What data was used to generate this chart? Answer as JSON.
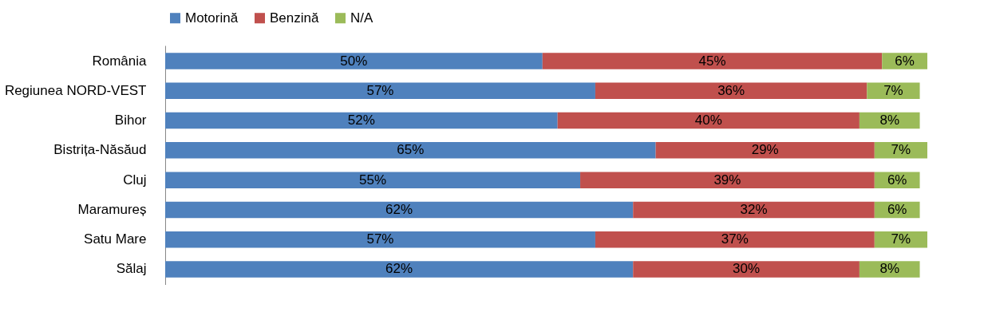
{
  "chart_data": {
    "type": "bar",
    "orientation": "horizontal",
    "stacked": true,
    "legend": "top",
    "categories": [
      "România",
      "Regiunea NORD-VEST",
      "Bihor",
      "Bistrița-Năsăud",
      "Cluj",
      "Maramureș",
      "Satu Mare",
      "Sălaj"
    ],
    "series": [
      {
        "name": "Motorină",
        "color": "#4f81bd",
        "values": [
          50,
          57,
          52,
          65,
          55,
          62,
          57,
          62
        ],
        "value_labels": [
          "50%",
          "57%",
          "52%",
          "65%",
          "55%",
          "62%",
          "57%",
          "62%"
        ]
      },
      {
        "name": "Benzină",
        "color": "#c0504d",
        "values": [
          45,
          36,
          40,
          29,
          39,
          32,
          37,
          30
        ],
        "value_labels": [
          "45%",
          "36%",
          "40%",
          "29%",
          "39%",
          "32%",
          "37%",
          "30%"
        ]
      },
      {
        "name": "N/A",
        "color": "#9bbb59",
        "values": [
          6,
          7,
          8,
          7,
          6,
          6,
          7,
          8
        ],
        "value_labels": [
          "6%",
          "7%",
          "8%",
          "7%",
          "6%",
          "6%",
          "7%",
          "8%"
        ]
      }
    ]
  }
}
